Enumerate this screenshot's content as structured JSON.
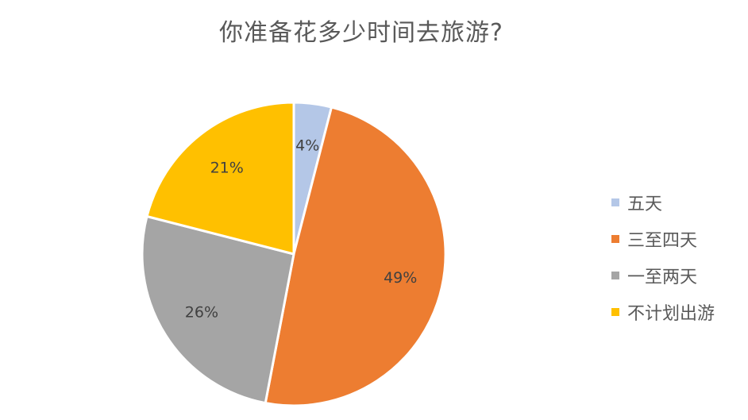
{
  "chart_data": {
    "type": "pie",
    "title": "你准备花多少时间去旅游?",
    "categories": [
      "五天",
      "三至四天",
      "一至两天",
      "不计划出游"
    ],
    "values": [
      4,
      49,
      26,
      21
    ],
    "data_labels": [
      "4%",
      "49%",
      "26%",
      "21%"
    ],
    "colors": [
      "#B4C7E7",
      "#ED7D31",
      "#A5A5A5",
      "#FFC000"
    ],
    "start_angle": "12 o'clock",
    "direction": "clockwise",
    "legend_position": "right"
  }
}
